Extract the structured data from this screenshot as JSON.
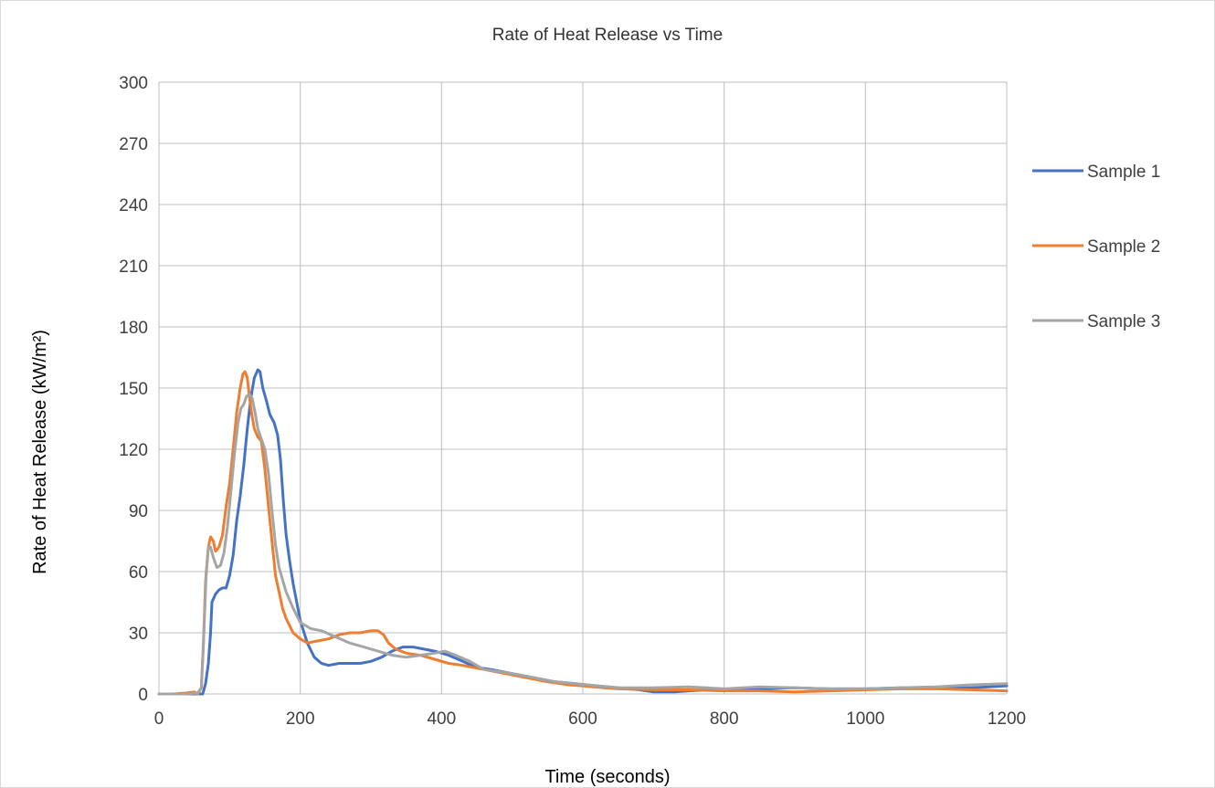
{
  "chart_data": {
    "type": "line",
    "title": "Rate of Heat Release vs Time",
    "xlabel": "Time (seconds)",
    "ylabel": "Rate of Heat Release (kW/m²)",
    "xlim": [
      0,
      1200
    ],
    "ylim": [
      0,
      300
    ],
    "xticks": [
      0,
      200,
      400,
      600,
      800,
      1000,
      1200
    ],
    "yticks": [
      0,
      30,
      60,
      90,
      120,
      150,
      180,
      210,
      240,
      270,
      300
    ],
    "grid": true,
    "legend": "right",
    "series": [
      {
        "name": "Sample 1",
        "color": "#4472C4",
        "points": [
          [
            0,
            0
          ],
          [
            20,
            0
          ],
          [
            40,
            0
          ],
          [
            55,
            0
          ],
          [
            62,
            0
          ],
          [
            66,
            5
          ],
          [
            70,
            15
          ],
          [
            73,
            30
          ],
          [
            75,
            45
          ],
          [
            80,
            49
          ],
          [
            85,
            51
          ],
          [
            90,
            52
          ],
          [
            95,
            52
          ],
          [
            100,
            58
          ],
          [
            105,
            68
          ],
          [
            110,
            85
          ],
          [
            115,
            97
          ],
          [
            120,
            112
          ],
          [
            125,
            130
          ],
          [
            130,
            145
          ],
          [
            135,
            155
          ],
          [
            140,
            159
          ],
          [
            143,
            158
          ],
          [
            147,
            150
          ],
          [
            152,
            144
          ],
          [
            157,
            137
          ],
          [
            163,
            133
          ],
          [
            168,
            127
          ],
          [
            172,
            115
          ],
          [
            176,
            95
          ],
          [
            180,
            78
          ],
          [
            185,
            65
          ],
          [
            190,
            54
          ],
          [
            195,
            45
          ],
          [
            200,
            36
          ],
          [
            210,
            25
          ],
          [
            220,
            18
          ],
          [
            230,
            15
          ],
          [
            240,
            14
          ],
          [
            255,
            15
          ],
          [
            270,
            15
          ],
          [
            285,
            15
          ],
          [
            300,
            16
          ],
          [
            315,
            18
          ],
          [
            330,
            21
          ],
          [
            345,
            23
          ],
          [
            360,
            23
          ],
          [
            375,
            22
          ],
          [
            390,
            21
          ],
          [
            410,
            19
          ],
          [
            430,
            16
          ],
          [
            450,
            13
          ],
          [
            470,
            12
          ],
          [
            500,
            10
          ],
          [
            530,
            8
          ],
          [
            560,
            6
          ],
          [
            590,
            5
          ],
          [
            620,
            4
          ],
          [
            650,
            3
          ],
          [
            680,
            2
          ],
          [
            700,
            1
          ],
          [
            730,
            1
          ],
          [
            750,
            1.5
          ],
          [
            780,
            2
          ],
          [
            810,
            2.5
          ],
          [
            850,
            2.5
          ],
          [
            900,
            3
          ],
          [
            950,
            2.5
          ],
          [
            1000,
            2.5
          ],
          [
            1050,
            3
          ],
          [
            1100,
            3
          ],
          [
            1150,
            3
          ],
          [
            1200,
            4
          ]
        ]
      },
      {
        "name": "Sample 2",
        "color": "#ED7D31",
        "points": [
          [
            0,
            0
          ],
          [
            20,
            0
          ],
          [
            40,
            0.5
          ],
          [
            50,
            1
          ],
          [
            55,
            0
          ],
          [
            60,
            3
          ],
          [
            63,
            25
          ],
          [
            66,
            55
          ],
          [
            70,
            72
          ],
          [
            73,
            77
          ],
          [
            77,
            75
          ],
          [
            80,
            70
          ],
          [
            85,
            72
          ],
          [
            90,
            78
          ],
          [
            95,
            92
          ],
          [
            100,
            103
          ],
          [
            105,
            120
          ],
          [
            110,
            138
          ],
          [
            115,
            150
          ],
          [
            119,
            157
          ],
          [
            122,
            158
          ],
          [
            125,
            155
          ],
          [
            128,
            146
          ],
          [
            131,
            138
          ],
          [
            135,
            130
          ],
          [
            140,
            126
          ],
          [
            145,
            124
          ],
          [
            150,
            110
          ],
          [
            155,
            92
          ],
          [
            160,
            75
          ],
          [
            165,
            58
          ],
          [
            170,
            50
          ],
          [
            175,
            42
          ],
          [
            180,
            37
          ],
          [
            190,
            30
          ],
          [
            200,
            27
          ],
          [
            210,
            25
          ],
          [
            225,
            26
          ],
          [
            240,
            27
          ],
          [
            255,
            29
          ],
          [
            270,
            30
          ],
          [
            285,
            30
          ],
          [
            300,
            31
          ],
          [
            310,
            31
          ],
          [
            318,
            29
          ],
          [
            325,
            25
          ],
          [
            335,
            22
          ],
          [
            350,
            20
          ],
          [
            370,
            19
          ],
          [
            390,
            17
          ],
          [
            410,
            15
          ],
          [
            430,
            14
          ],
          [
            460,
            12
          ],
          [
            490,
            10
          ],
          [
            520,
            8
          ],
          [
            550,
            6
          ],
          [
            580,
            4.5
          ],
          [
            600,
            4
          ],
          [
            630,
            3
          ],
          [
            650,
            2.5
          ],
          [
            700,
            2
          ],
          [
            750,
            2
          ],
          [
            800,
            1.5
          ],
          [
            850,
            1.5
          ],
          [
            900,
            1
          ],
          [
            950,
            1.5
          ],
          [
            1000,
            2
          ],
          [
            1050,
            2.5
          ],
          [
            1100,
            2.5
          ],
          [
            1150,
            2
          ],
          [
            1200,
            1.5
          ]
        ]
      },
      {
        "name": "Sample 3",
        "color": "#A5A5A5",
        "points": [
          [
            0,
            0
          ],
          [
            20,
            0
          ],
          [
            40,
            0
          ],
          [
            55,
            0.5
          ],
          [
            60,
            3
          ],
          [
            63,
            25
          ],
          [
            67,
            60
          ],
          [
            70,
            72
          ],
          [
            73,
            72
          ],
          [
            77,
            67
          ],
          [
            82,
            62
          ],
          [
            87,
            63
          ],
          [
            92,
            69
          ],
          [
            97,
            82
          ],
          [
            102,
            100
          ],
          [
            107,
            118
          ],
          [
            112,
            133
          ],
          [
            116,
            140
          ],
          [
            120,
            142
          ],
          [
            124,
            146
          ],
          [
            128,
            147
          ],
          [
            132,
            145
          ],
          [
            136,
            138
          ],
          [
            140,
            130
          ],
          [
            145,
            125
          ],
          [
            150,
            120
          ],
          [
            155,
            108
          ],
          [
            160,
            90
          ],
          [
            165,
            73
          ],
          [
            170,
            62
          ],
          [
            175,
            56
          ],
          [
            180,
            50
          ],
          [
            190,
            42
          ],
          [
            200,
            35
          ],
          [
            215,
            32
          ],
          [
            230,
            31
          ],
          [
            250,
            28
          ],
          [
            270,
            25
          ],
          [
            290,
            23
          ],
          [
            310,
            21
          ],
          [
            330,
            19
          ],
          [
            350,
            18
          ],
          [
            370,
            19
          ],
          [
            390,
            20
          ],
          [
            405,
            21
          ],
          [
            420,
            19
          ],
          [
            440,
            16
          ],
          [
            460,
            12
          ],
          [
            480,
            11
          ],
          [
            500,
            10
          ],
          [
            530,
            8
          ],
          [
            560,
            6
          ],
          [
            590,
            5
          ],
          [
            620,
            4
          ],
          [
            650,
            3
          ],
          [
            700,
            3
          ],
          [
            750,
            3.5
          ],
          [
            800,
            2.5
          ],
          [
            850,
            3.5
          ],
          [
            900,
            3
          ],
          [
            950,
            2.5
          ],
          [
            1000,
            2.5
          ],
          [
            1050,
            3
          ],
          [
            1100,
            3.5
          ],
          [
            1150,
            4.5
          ],
          [
            1200,
            5
          ]
        ]
      }
    ]
  }
}
